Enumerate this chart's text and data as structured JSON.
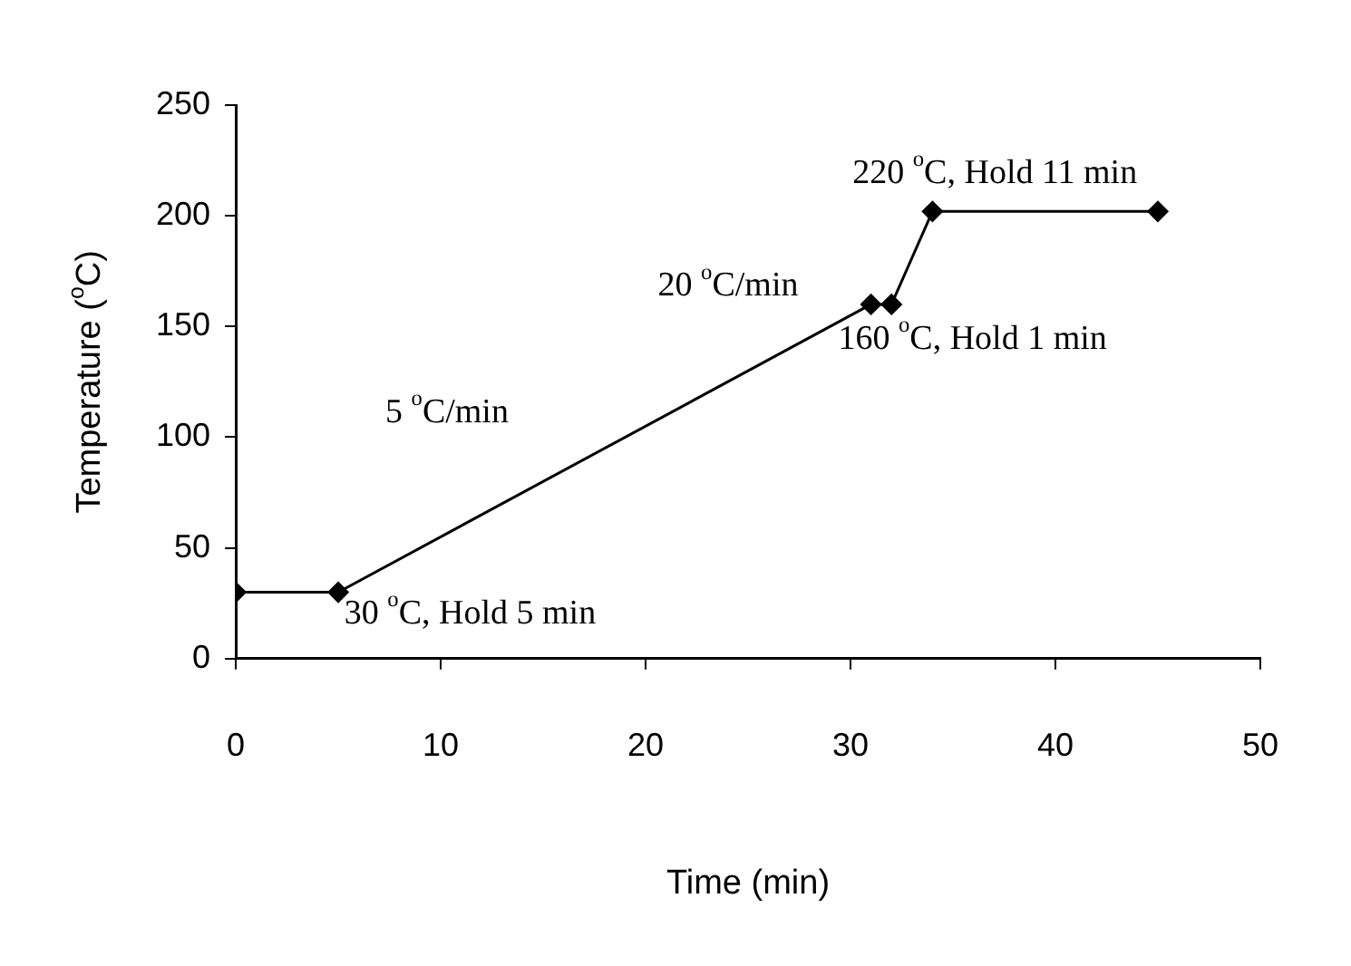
{
  "chart_data": {
    "type": "line",
    "xlabel": "Time (min)",
    "ylabel": "Temperature ($^{o}$C)",
    "x": [
      0,
      5,
      31,
      32,
      34,
      45
    ],
    "series": [
      {
        "color": "#000000",
        "values": [
          30,
          30,
          160,
          160,
          202,
          202
        ]
      }
    ],
    "xlim": [
      0,
      50
    ],
    "xticks": [
      0,
      10,
      20,
      30,
      40,
      50
    ],
    "ylim": [
      0,
      250
    ],
    "yticks": [
      0,
      50,
      100,
      150,
      200,
      250
    ],
    "grid": false,
    "legend": false,
    "marker": "diamond",
    "line_style": "solid",
    "annotations": [
      "30 $^{o}$C, Hold 5 min",
      "5 $^{o}$C/min",
      "20 $^{o}$C/min",
      "160 $^{o}$C, Hold 1 min",
      "220 $^{o}$C, Hold 11 min"
    ]
  }
}
